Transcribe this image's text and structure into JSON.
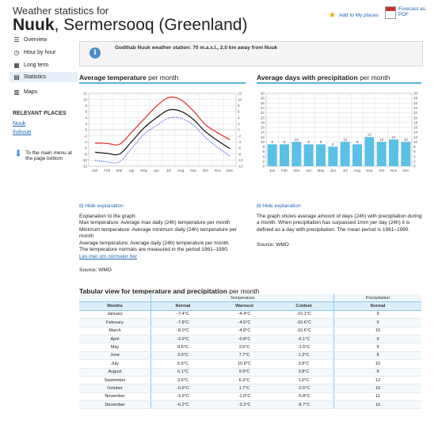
{
  "header": {
    "subtitle": "Weather statistics for",
    "city": "Nuuk",
    "region": ", Sermersooq (Greenland)",
    "add_places": "Add to My places",
    "forecast_pdf": "Forecast as PDF"
  },
  "sidebar": {
    "items": [
      {
        "label": "Overview",
        "icon": "list-icon"
      },
      {
        "label": "Hour by hour",
        "icon": "clock-icon"
      },
      {
        "label": "Long term",
        "icon": "calendar-icon"
      },
      {
        "label": "Statistics",
        "icon": "chart-icon"
      },
      {
        "label": "Maps",
        "icon": "map-icon"
      }
    ],
    "relevant_heading": "RELEVANT PLACES",
    "relevant": [
      "Nuuk",
      "Ilulissat"
    ],
    "back_to_menu": "To the main menu at the page bottom"
  },
  "info": {
    "text": "Godthab Nuuk weather station: 70 m.a.s.l., 2.0 km away from Nuuk"
  },
  "temp_section": {
    "title_bold": "Average temperature",
    "title_rest": " per month",
    "hide": "Hide explanation",
    "explain": [
      "Explanation to the graph:",
      "Max temperature: Average max daily (24h) temperature per month",
      "Minimum temperature: Average minimum daily (24h) temperature per month",
      "Average temperature: Average daily (24h) temperature per month.",
      "The temperature normals are measured in the period 1961–1990."
    ],
    "link": "Les mer om normaler her",
    "source": "Source: WMO"
  },
  "precip_section": {
    "title_bold": "Average days with precipitation",
    "title_rest": " per month",
    "hide": "Hide explanation",
    "explain": "The graph shows average amount of days (24h) with precipitation during a month. When precipitation has surpassed 1mm per day (24h) it is defined as a day with precipitation. The mean period is 1961–1990.",
    "source": "Source: WMO"
  },
  "table": {
    "title_bold": "Tabular view for temperature and precipitation",
    "title_rest": " per month",
    "group_temp": "Temperature",
    "group_precip": "Precipitation",
    "headers": [
      "Months",
      "Normal",
      "Warmest",
      "Coldest",
      "Normal"
    ],
    "rows": [
      [
        "January",
        "-7.4°C",
        "-4.4°C",
        "-10.1°C",
        "9"
      ],
      [
        "February",
        "-7.8°C",
        "-4.5°C",
        "-10.6°C",
        "9"
      ],
      [
        "March",
        "-8.0°C",
        "-4.8°C",
        "-10.6°C",
        "10"
      ],
      [
        "April",
        "-3.9°C",
        "-0.8°C",
        "-6.1°C",
        "9"
      ],
      [
        "May",
        "0.6°C",
        "3.5°C",
        "-1.5°C",
        "9"
      ],
      [
        "June",
        "3.9°C",
        "7.7°C",
        "1.3°C",
        "8"
      ],
      [
        "July",
        "6.5°C",
        "10.6°C",
        "3.8°C",
        "10"
      ],
      [
        "August",
        "6.1°C",
        "9.9°C",
        "3.8°C",
        "9"
      ],
      [
        "September",
        "3.5°C",
        "6.3°C",
        "1.6°C",
        "12"
      ],
      [
        "October",
        "-0.6°C",
        "1.7°C",
        "-2.5°C",
        "10"
      ],
      [
        "November",
        "-3.6°C",
        "-1.0°C",
        "-5.8°C",
        "11"
      ],
      [
        "December",
        "-6.2°C",
        "-3.3°C",
        "-8.7°C",
        "10"
      ]
    ]
  },
  "chart_data": [
    {
      "type": "line",
      "categories": [
        "Jan",
        "Feb",
        "Mar",
        "Apr",
        "May",
        "Jun",
        "Jul",
        "Aug",
        "Sep",
        "Oct",
        "Nov",
        "Dec"
      ],
      "series": [
        {
          "values": [
            -4.4,
            -4.5,
            -4.8,
            -0.8,
            3.5,
            7.7,
            10.6,
            9.9,
            6.3,
            1.7,
            -1.0,
            -3.3
          ],
          "color": "#e53935"
        },
        {
          "values": [
            -7.4,
            -7.8,
            -8.0,
            -3.9,
            0.6,
            3.9,
            6.5,
            6.1,
            3.5,
            -0.6,
            -3.6,
            -6.2
          ],
          "color": "#222222"
        },
        {
          "values": [
            -10.1,
            -10.6,
            -10.6,
            -6.1,
            -1.5,
            1.3,
            3.8,
            3.8,
            1.6,
            -2.5,
            -5.8,
            -8.7
          ],
          "color": "#2f4bd8",
          "dashed": true
        }
      ],
      "ylim": [
        -12,
        12
      ],
      "yticks": [
        -12,
        -10,
        -8,
        -6,
        -4,
        -2,
        0,
        2,
        4,
        6,
        8,
        10,
        12
      ],
      "grid": true
    },
    {
      "type": "bar",
      "categories": [
        "Jan",
        "Feb",
        "Mar",
        "Apr",
        "May",
        "Jun",
        "Jul",
        "Aug",
        "Sep",
        "Oct",
        "Nov",
        "Dec"
      ],
      "values": [
        9,
        9,
        10,
        9,
        9,
        8,
        10,
        9,
        12,
        10,
        11,
        10
      ],
      "bar_color": "#5bc0e6",
      "ylim": [
        0,
        30
      ],
      "yticks": [
        0,
        2,
        4,
        6,
        8,
        10,
        12,
        14,
        16,
        18,
        20,
        22,
        24,
        26,
        28,
        30
      ],
      "grid": true
    }
  ]
}
